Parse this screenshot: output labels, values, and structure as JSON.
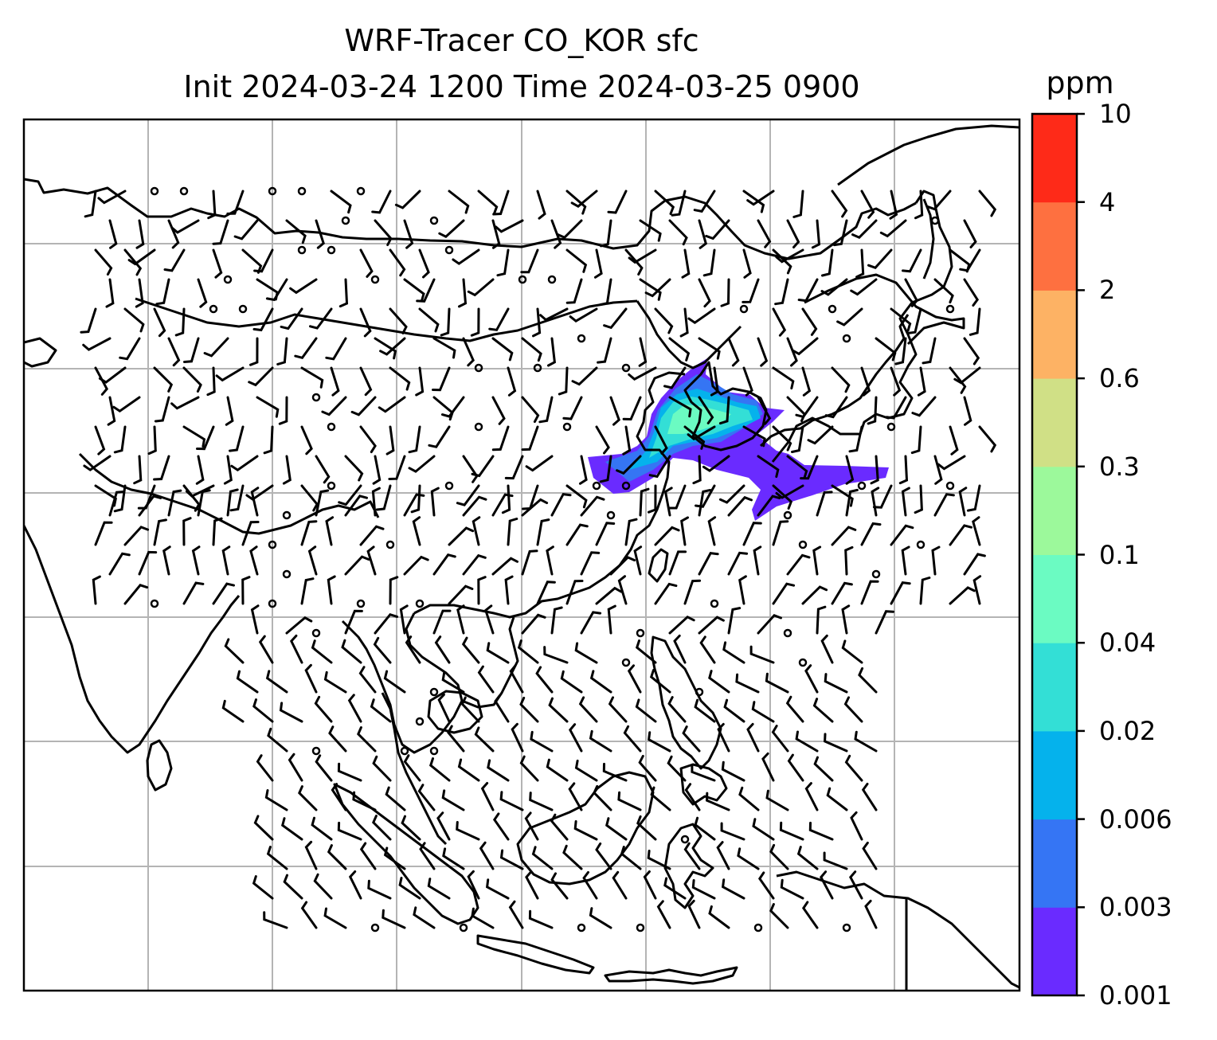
{
  "title": {
    "line1": "WRF-Tracer CO_KOR sfc",
    "line2": "Init 2024-03-24 1200 Time 2024-03-25 0900"
  },
  "colorbar": {
    "unit": "ppm",
    "levels": [
      "0.001",
      "0.003",
      "0.006",
      "0.02",
      "0.04",
      "0.1",
      "0.3",
      "0.6",
      "2",
      "4",
      "10"
    ],
    "colors": [
      "#6a2bff",
      "#3575f4",
      "#05b2ec",
      "#33dfd6",
      "#6bfbc2",
      "#9cf99b",
      "#d0e086",
      "#fdb264",
      "#fe7040",
      "#fe2a18"
    ]
  },
  "map": {
    "projection": "lambert-conformal",
    "gridlines": true,
    "coastline_color": "#000000",
    "barb_color": "#000000"
  }
}
